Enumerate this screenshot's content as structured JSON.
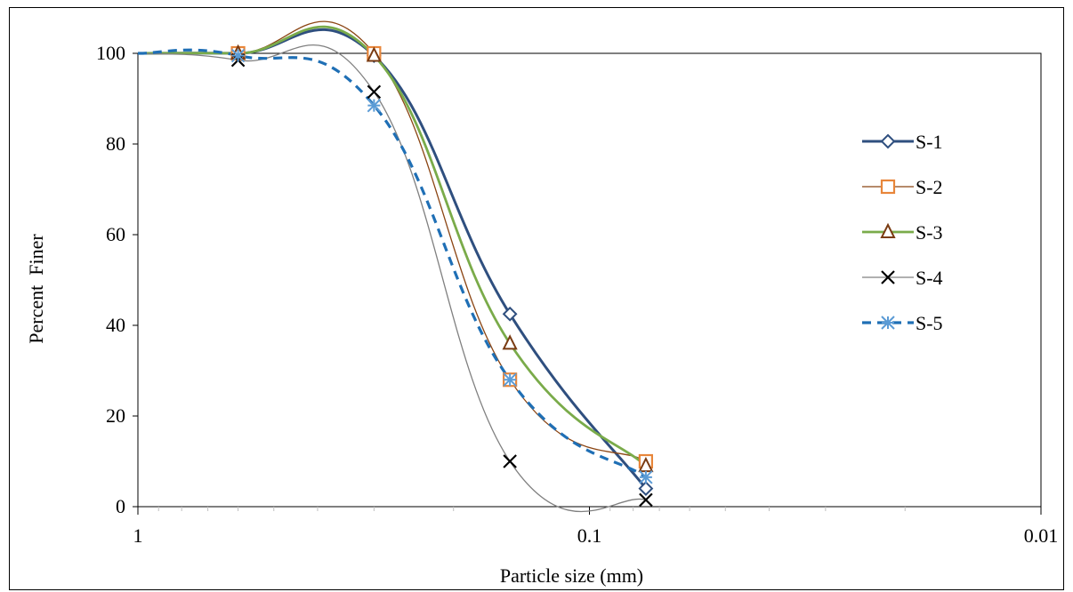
{
  "chart_data": {
    "type": "line",
    "title": "",
    "xlabel": "Particle size (mm)",
    "ylabel": "Percent  Finer",
    "x_scale": "log",
    "x_reversed": true,
    "xlim": [
      1,
      0.01
    ],
    "ylim": [
      0,
      100
    ],
    "grid": false,
    "legend_position": "right",
    "x_ticks": [
      {
        "value": 1,
        "label": "1"
      },
      {
        "value": 0.1,
        "label": "0.1"
      },
      {
        "value": 0.01,
        "label": "0.01"
      }
    ],
    "y_ticks": [
      {
        "value": 0,
        "label": "0"
      },
      {
        "value": 20,
        "label": "20"
      },
      {
        "value": 40,
        "label": "40"
      },
      {
        "value": 60,
        "label": "60"
      },
      {
        "value": 80,
        "label": "80"
      },
      {
        "value": 100,
        "label": "100"
      }
    ],
    "series": [
      {
        "name": "S-1",
        "color": "#2f4f7f",
        "marker": "diamond",
        "dash": "",
        "width": 3,
        "x": [
          1,
          0.6,
          0.3,
          0.15,
          0.075
        ],
        "y": [
          100,
          100,
          99.5,
          42.5,
          4
        ]
      },
      {
        "name": "S-2",
        "color": "#e8863a",
        "marker": "square",
        "line_color": "#8b4513",
        "dash": "",
        "width": 1.3,
        "x": [
          1,
          0.6,
          0.3,
          0.15,
          0.075
        ],
        "y": [
          100,
          100,
          100,
          28,
          10
        ]
      },
      {
        "name": "S-3",
        "color": "#7aab4a",
        "marker": "triangle",
        "marker_color": "#7a3b12",
        "dash": "",
        "width": 2.8,
        "x": [
          1,
          0.6,
          0.3,
          0.15,
          0.075
        ],
        "y": [
          100,
          100,
          99.5,
          36,
          9
        ]
      },
      {
        "name": "S-4",
        "color": "#000000",
        "marker": "x",
        "line_color": "#808080",
        "dash": "",
        "width": 1.3,
        "x": [
          1,
          0.6,
          0.3,
          0.15,
          0.075
        ],
        "y": [
          100,
          98.5,
          91.5,
          10,
          1.5
        ]
      },
      {
        "name": "S-5",
        "color": "#1f6fb5",
        "marker": "star",
        "marker_color": "#5b9bd5",
        "dash": "10,7",
        "width": 3.2,
        "x": [
          1,
          0.6,
          0.3,
          0.15,
          0.075
        ],
        "y": [
          100,
          99.5,
          88.5,
          28,
          6.5
        ]
      }
    ]
  }
}
